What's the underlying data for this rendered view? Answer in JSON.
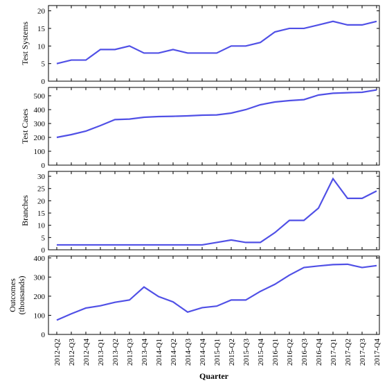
{
  "chart_data": [
    {
      "type": "line",
      "ylabel": [
        "Test Systems"
      ],
      "color": "#5050e6",
      "values": [
        5,
        6,
        6,
        9,
        9,
        10,
        8,
        8,
        9,
        8,
        8,
        8,
        10,
        10,
        11,
        14,
        15,
        15,
        16,
        17,
        16,
        16,
        17
      ],
      "ylim": [
        0,
        21.5
      ],
      "yticks": [
        0,
        5,
        10,
        15,
        20
      ]
    },
    {
      "type": "line",
      "ylabel": [
        "Test Cases"
      ],
      "color": "#5050e6",
      "values": [
        200,
        220,
        245,
        285,
        328,
        332,
        345,
        350,
        352,
        355,
        360,
        362,
        375,
        400,
        435,
        455,
        465,
        472,
        505,
        518,
        522,
        525,
        542
      ],
      "ylim": [
        0,
        560
      ],
      "yticks": [
        0,
        100,
        200,
        300,
        400,
        500
      ]
    },
    {
      "type": "line",
      "ylabel": [
        "Branches"
      ],
      "color": "#5050e6",
      "values": [
        2,
        2,
        2,
        2,
        2,
        2,
        2,
        2,
        2,
        2,
        2,
        3,
        4,
        3,
        3,
        7,
        12,
        12,
        17,
        29,
        21,
        21,
        24
      ],
      "ylim": [
        0,
        32
      ],
      "yticks": [
        0,
        5,
        10,
        15,
        20,
        25,
        30
      ]
    },
    {
      "type": "line",
      "ylabel": [
        "Outcomes",
        "(thousands)"
      ],
      "color": "#5050e6",
      "xlabel": "Quarter",
      "categories": [
        "2012-Q2",
        "2012-Q3",
        "2012-Q4",
        "2013-Q1",
        "2013-Q2",
        "2013-Q3",
        "2013-Q4",
        "2014-Q1",
        "2014-Q2",
        "2014-Q3",
        "2014-Q4",
        "2015-Q1",
        "2015-Q2",
        "2015-Q3",
        "2015-Q4",
        "2016-Q1",
        "2016-Q2",
        "2016-Q3",
        "2016-Q4",
        "2017-Q1",
        "2017-Q2",
        "2017-Q3",
        "2017-Q4"
      ],
      "values": [
        75,
        108,
        138,
        150,
        168,
        180,
        248,
        198,
        170,
        117,
        140,
        148,
        180,
        180,
        225,
        262,
        310,
        350,
        358,
        365,
        367,
        350,
        360
      ],
      "ylim": [
        0,
        410
      ],
      "yticks": [
        0,
        100,
        200,
        300,
        400
      ]
    }
  ]
}
